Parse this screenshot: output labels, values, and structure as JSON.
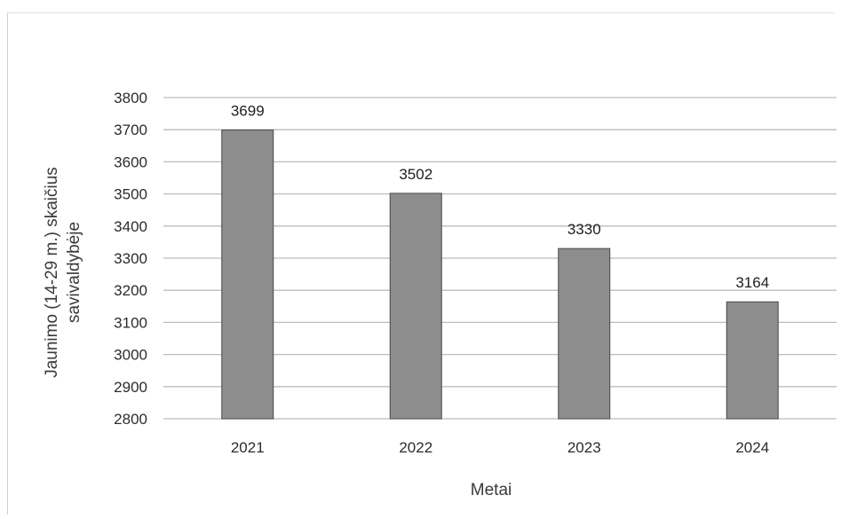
{
  "chart_data": {
    "type": "bar",
    "categories": [
      "2021",
      "2022",
      "2023",
      "2024"
    ],
    "values": [
      3699,
      3502,
      3330,
      3164
    ],
    "data_labels": [
      "3699",
      "3502",
      "3330",
      "3164"
    ],
    "title": "",
    "xlabel": "Metai",
    "ylabel": "Jaunimo (14-29 m.) skaičius savivaldybėje",
    "ylabel_lines": [
      "Jaunimo (14-29 m.) skaičius",
      "savivaldybėje"
    ],
    "ylim": [
      2800,
      3800
    ],
    "yticks": [
      2800,
      2900,
      3000,
      3100,
      3200,
      3300,
      3400,
      3500,
      3600,
      3700,
      3800
    ],
    "grid": true,
    "legend": "none",
    "colors": {
      "bar": "#8d8d8d",
      "bar_edge": "#4a4a4a",
      "grid": "#bdbdbd",
      "text": "#2c2c2c"
    }
  }
}
